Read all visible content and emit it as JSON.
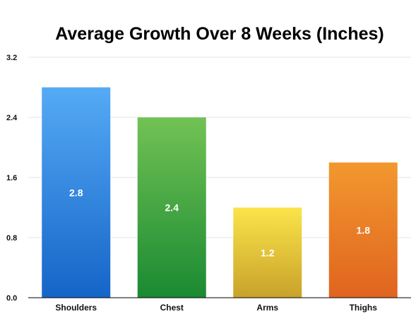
{
  "chart_data": {
    "type": "bar",
    "title": "Average Growth Over 8 Weeks (Inches)",
    "xlabel": "",
    "ylabel": "",
    "categories": [
      "Shoulders",
      "Chest",
      "Arms",
      "Thighs"
    ],
    "values": [
      2.8,
      2.4,
      1.2,
      1.8
    ],
    "data_labels": [
      "2.8",
      "2.4",
      "1.2",
      "1.8"
    ],
    "ylim": [
      0,
      3.2
    ],
    "yticks": [
      0.0,
      0.8,
      1.6,
      2.4,
      3.2
    ],
    "ytick_labels": [
      "0.0",
      "0.8",
      "1.6",
      "2.4",
      "3.2"
    ],
    "grid": true,
    "legend": "none",
    "bar_colors": [
      {
        "top": "#55aaf5",
        "bottom": "#1565c8"
      },
      {
        "top": "#72c254",
        "bottom": "#1a8a32"
      },
      {
        "top": "#fbe44a",
        "bottom": "#c9a22a"
      },
      {
        "top": "#f2982f",
        "bottom": "#e0641f"
      }
    ]
  }
}
